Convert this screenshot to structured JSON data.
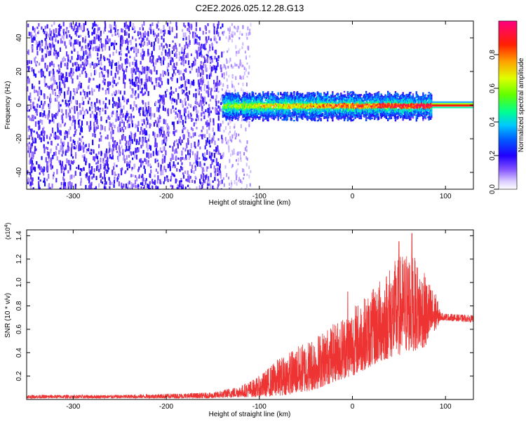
{
  "title": "C2E2.2026.025.12.28.G13",
  "chart_data": [
    {
      "type": "heatmap",
      "xlabel": "Height of straight line (km)",
      "ylabel": "Frequency (Hz)",
      "xlim": [
        -350,
        130
      ],
      "ylim": [
        -50,
        50
      ],
      "xticks": [
        -300,
        -200,
        -100,
        0,
        100
      ],
      "yticks": [
        -40,
        -20,
        0,
        20,
        40
      ],
      "colorbar": {
        "label": "Normalized spectral amplitude",
        "range": [
          0,
          1
        ],
        "ticks": [
          "0.0",
          "0.2",
          "0.4",
          "0.6",
          "0.8"
        ],
        "tick_values": [
          0.0,
          0.2,
          0.4,
          0.6,
          0.8
        ],
        "colormap": [
          "#ffffff",
          "#c8b4ff",
          "#6400ff",
          "#0000ff",
          "#00c8ff",
          "#00ff80",
          "#80ff00",
          "#ffff00",
          "#ff8000",
          "#ff0000",
          "#ff0080"
        ]
      },
      "regions": [
        {
          "x_range": [
            -350,
            -140
          ],
          "freq_range": [
            -50,
            50
          ],
          "amplitude": 0.05,
          "note": "noise"
        },
        {
          "x_range": [
            -140,
            85
          ],
          "freq_range": [
            -8,
            8
          ],
          "amplitude": 0.35
        },
        {
          "x_range": [
            85,
            130
          ],
          "freq_range": [
            -2,
            2
          ],
          "amplitude": 0.9
        }
      ]
    },
    {
      "type": "line",
      "xlabel": "Height of straight line (km)",
      "ylabel": "SNR (10 * v/v)",
      "y_multiplier": "(x10^4)",
      "xlim": [
        -350,
        130
      ],
      "ylim": [
        0,
        1.45
      ],
      "xticks": [
        -300,
        -200,
        -100,
        0,
        100
      ],
      "yticks": [
        "0.2",
        "0.4",
        "0.6",
        "0.8",
        "1.0",
        "1.2",
        "1.4"
      ],
      "ytick_values": [
        0.2,
        0.4,
        0.6,
        0.8,
        1.0,
        1.2,
        1.4
      ],
      "color": "#ee3333",
      "envelope": {
        "x": [
          -350,
          -300,
          -250,
          -200,
          -150,
          -120,
          -100,
          -80,
          -60,
          -40,
          -20,
          0,
          20,
          40,
          60,
          80,
          90,
          95,
          110,
          130
        ],
        "y_low": [
          0.01,
          0.01,
          0.01,
          0.01,
          0.01,
          0.02,
          0.02,
          0.03,
          0.05,
          0.08,
          0.15,
          0.2,
          0.28,
          0.35,
          0.4,
          0.45,
          0.6,
          0.68,
          0.67,
          0.66
        ],
        "y_high": [
          0.04,
          0.04,
          0.04,
          0.05,
          0.06,
          0.12,
          0.2,
          0.35,
          0.45,
          0.55,
          0.65,
          0.8,
          0.92,
          1.15,
          1.3,
          1.05,
          0.9,
          0.74,
          0.73,
          0.72
        ]
      },
      "peaks": [
        {
          "x": -5,
          "y": 0.92
        },
        {
          "x": 50,
          "y": 1.35
        },
        {
          "x": 64,
          "y": 1.42
        }
      ]
    }
  ]
}
